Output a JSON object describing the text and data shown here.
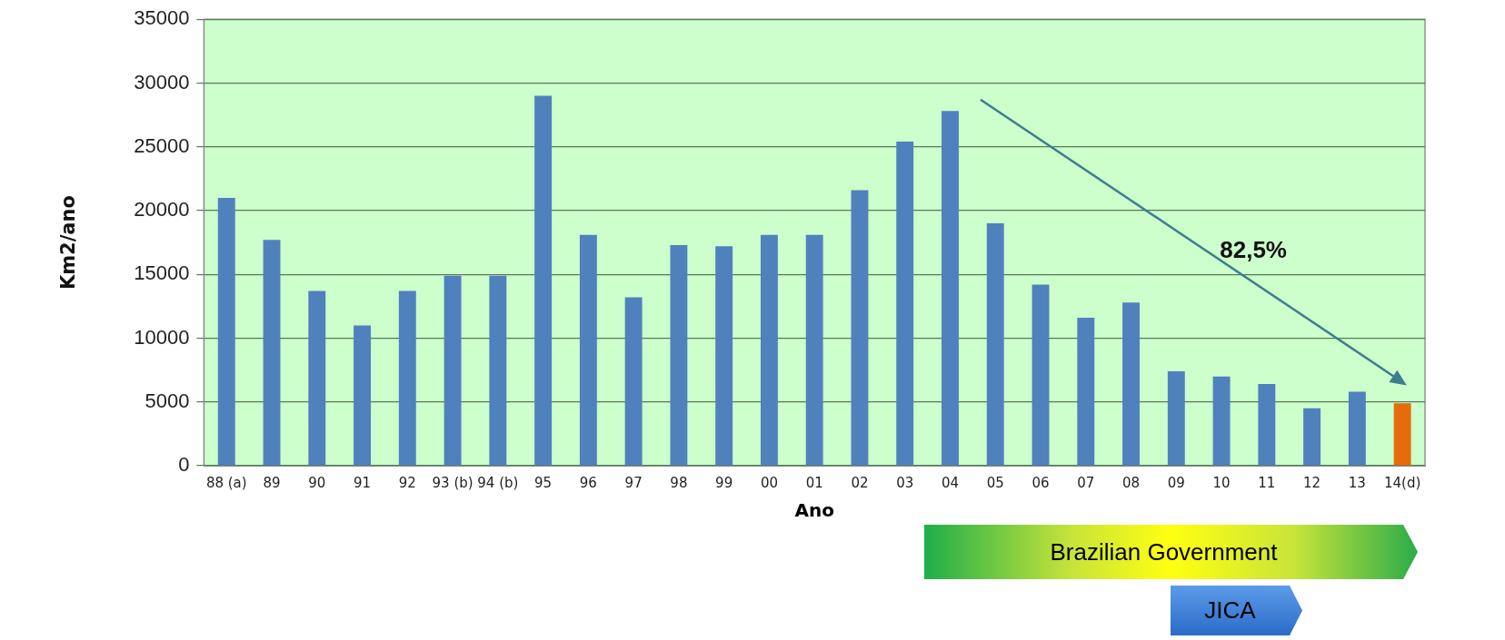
{
  "chart_data": {
    "type": "bar",
    "xlabel": "Ano",
    "ylabel": "Km2/ano",
    "categories": [
      "88 (a)",
      "89",
      "90",
      "91",
      "92",
      "93 (b)",
      "94 (b)",
      "95",
      "96",
      "97",
      "98",
      "99",
      "00",
      "01",
      "02",
      "03",
      "04",
      "05",
      "06",
      "07",
      "08",
      "09",
      "10",
      "11",
      "12",
      "13",
      "14(d)"
    ],
    "values": [
      21000,
      17700,
      13700,
      11000,
      13700,
      14900,
      14900,
      29000,
      18100,
      13200,
      17300,
      17200,
      18100,
      18100,
      21600,
      25400,
      27800,
      19000,
      14200,
      11600,
      12800,
      7400,
      7000,
      6400,
      4500,
      5800,
      4900
    ],
    "colors": [
      "#4f81bd",
      "#4f81bd",
      "#4f81bd",
      "#4f81bd",
      "#4f81bd",
      "#4f81bd",
      "#4f81bd",
      "#4f81bd",
      "#4f81bd",
      "#4f81bd",
      "#4f81bd",
      "#4f81bd",
      "#4f81bd",
      "#4f81bd",
      "#4f81bd",
      "#4f81bd",
      "#4f81bd",
      "#4f81bd",
      "#4f81bd",
      "#4f81bd",
      "#4f81bd",
      "#4f81bd",
      "#4f81bd",
      "#4f81bd",
      "#4f81bd",
      "#4f81bd",
      "#e46c0a"
    ],
    "ylim": [
      0,
      35000
    ],
    "yticks": [
      0,
      5000,
      10000,
      15000,
      20000,
      25000,
      30000,
      35000
    ],
    "grid": "y",
    "annotations": [
      "82,5%",
      "Brazilian Government",
      "JICA"
    ]
  }
}
